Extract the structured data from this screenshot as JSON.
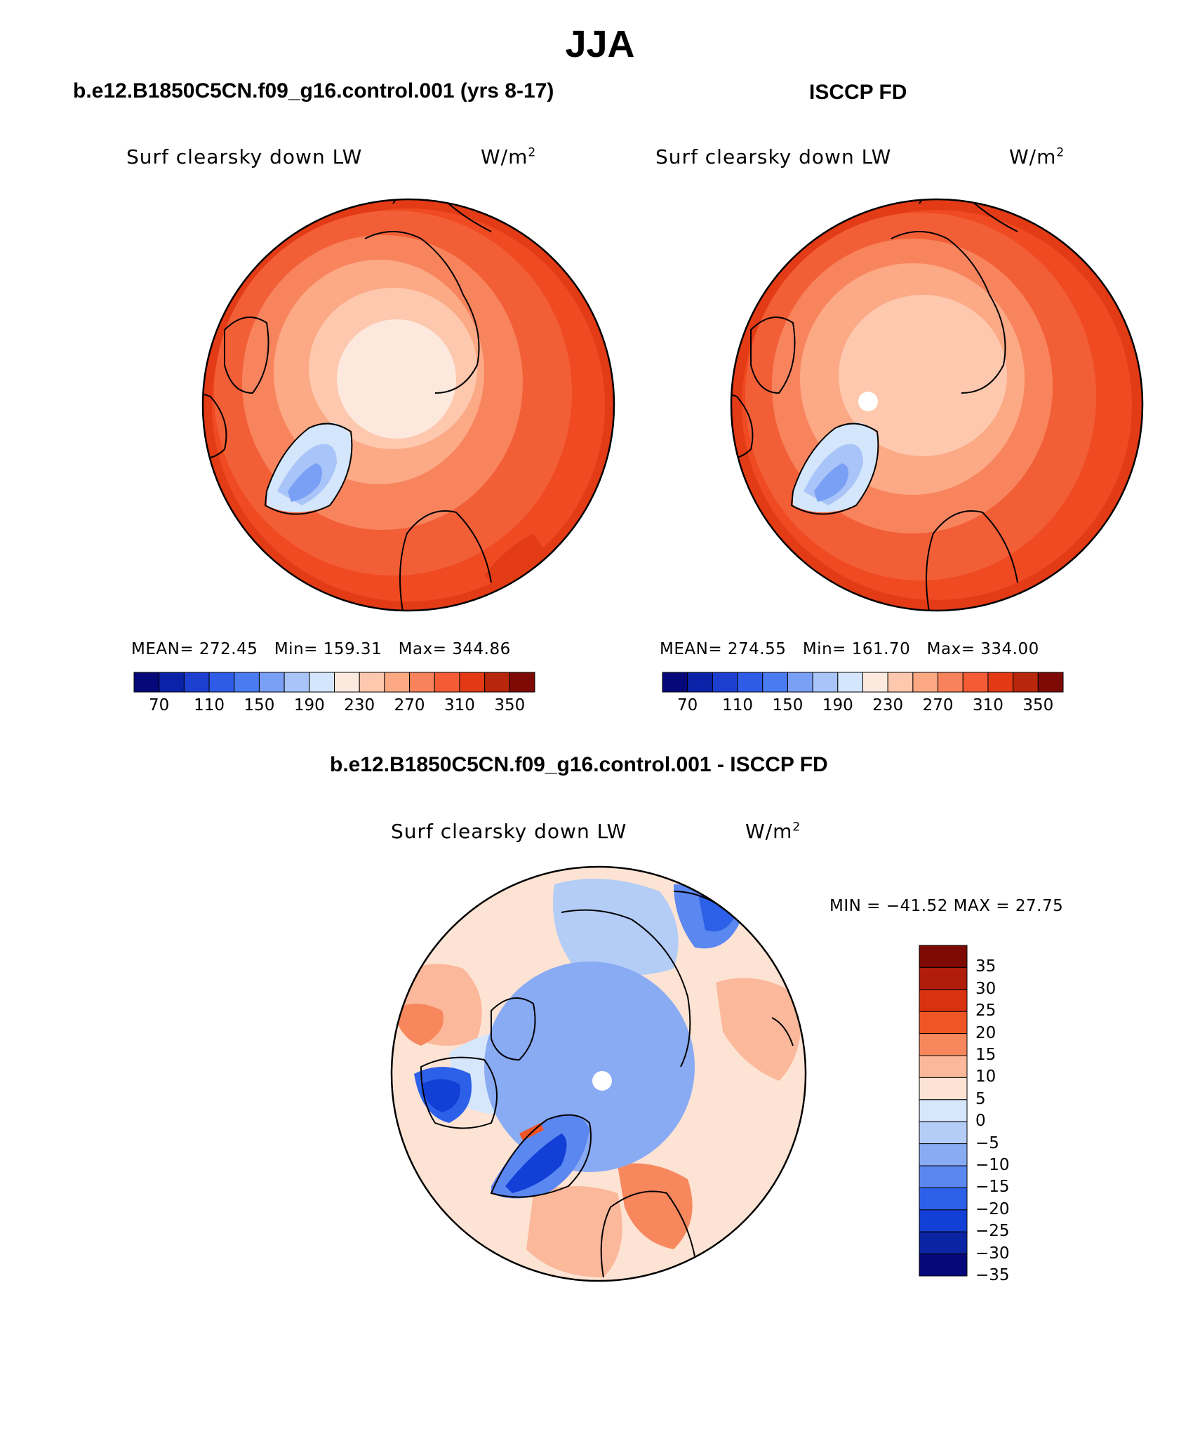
{
  "figure": {
    "title": "JJA"
  },
  "panels": {
    "left": {
      "case_title": "b.e12.B1850C5CN.f09_g16.control.001 (yrs 8-17)",
      "variable": "Surf clearsky down LW",
      "units_base": "W/m",
      "units_exp": "2",
      "mean_label": "MEAN= 272.45",
      "min_label": "Min= 159.31",
      "max_label": "Max= 344.86"
    },
    "right": {
      "case_title": "ISCCP FD",
      "variable": "Surf clearsky down LW",
      "units_base": "W/m",
      "units_exp": "2",
      "mean_label": "MEAN= 274.55",
      "min_label": "Min= 161.70",
      "max_label": "Max= 334.00"
    },
    "diff": {
      "case_title": "b.e12.B1850C5CN.f09_g16.control.001 - ISCCP FD",
      "variable": "Surf clearsky down LW",
      "units_base": "W/m",
      "units_exp": "2",
      "minmax_label": "MIN = −41.52 MAX =   27.75"
    }
  },
  "colorbars": {
    "absolute": {
      "colors": [
        "#06087a",
        "#0a22a8",
        "#1d3fcf",
        "#2f5ce6",
        "#4a7bf0",
        "#7aa0f5",
        "#a8c4f8",
        "#d4e6fb",
        "#fdeadf",
        "#fdc8ae",
        "#fca883",
        "#f8825b",
        "#f35c35",
        "#e33a15",
        "#b8260c",
        "#7e0a06"
      ],
      "tick_labels": [
        "70",
        "110",
        "150",
        "190",
        "230",
        "270",
        "310",
        "350"
      ]
    },
    "difference": {
      "colors_top_to_bottom": [
        "#7e0a06",
        "#b01d0a",
        "#d9320f",
        "#f05526",
        "#f7875d",
        "#fbb89a",
        "#fde3d4",
        "#d6e6fb",
        "#b3cdf7",
        "#89abf3",
        "#5b87f0",
        "#2c60e8",
        "#123fd6",
        "#0b24a3",
        "#06087a"
      ],
      "tick_labels": [
        "35",
        "30",
        "25",
        "20",
        "15",
        "10",
        "5",
        "0",
        "−5",
        "−10",
        "−15",
        "−20",
        "−25",
        "−30",
        "−35"
      ]
    }
  }
}
